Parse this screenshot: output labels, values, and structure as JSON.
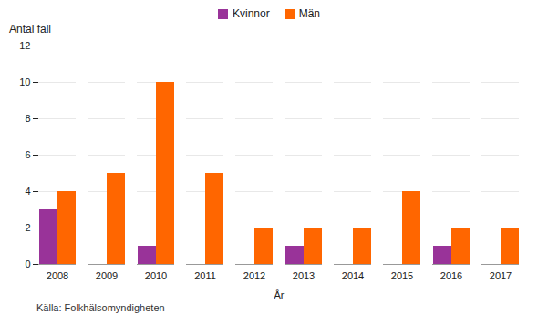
{
  "chart_data": {
    "type": "bar",
    "categories": [
      "2008",
      "2009",
      "2010",
      "2011",
      "2012",
      "2013",
      "2014",
      "2015",
      "2016",
      "2017"
    ],
    "series": [
      {
        "name": "Kvinnor",
        "color": "#993399",
        "values": [
          3,
          0,
          1,
          0,
          0,
          1,
          0,
          0,
          1,
          0
        ]
      },
      {
        "name": "Män",
        "color": "#FF6600",
        "values": [
          4,
          5,
          10,
          5,
          2,
          2,
          2,
          4,
          2,
          2
        ]
      }
    ],
    "xlabel": "År",
    "ylabel": "Antal fall",
    "annotations": [
      "Källa: Folkhälsomyndigheten"
    ],
    "ylim": [
      0,
      12
    ],
    "yticks": [
      0,
      2,
      4,
      6,
      8,
      10,
      12
    ],
    "grid": true,
    "legend": "top"
  }
}
